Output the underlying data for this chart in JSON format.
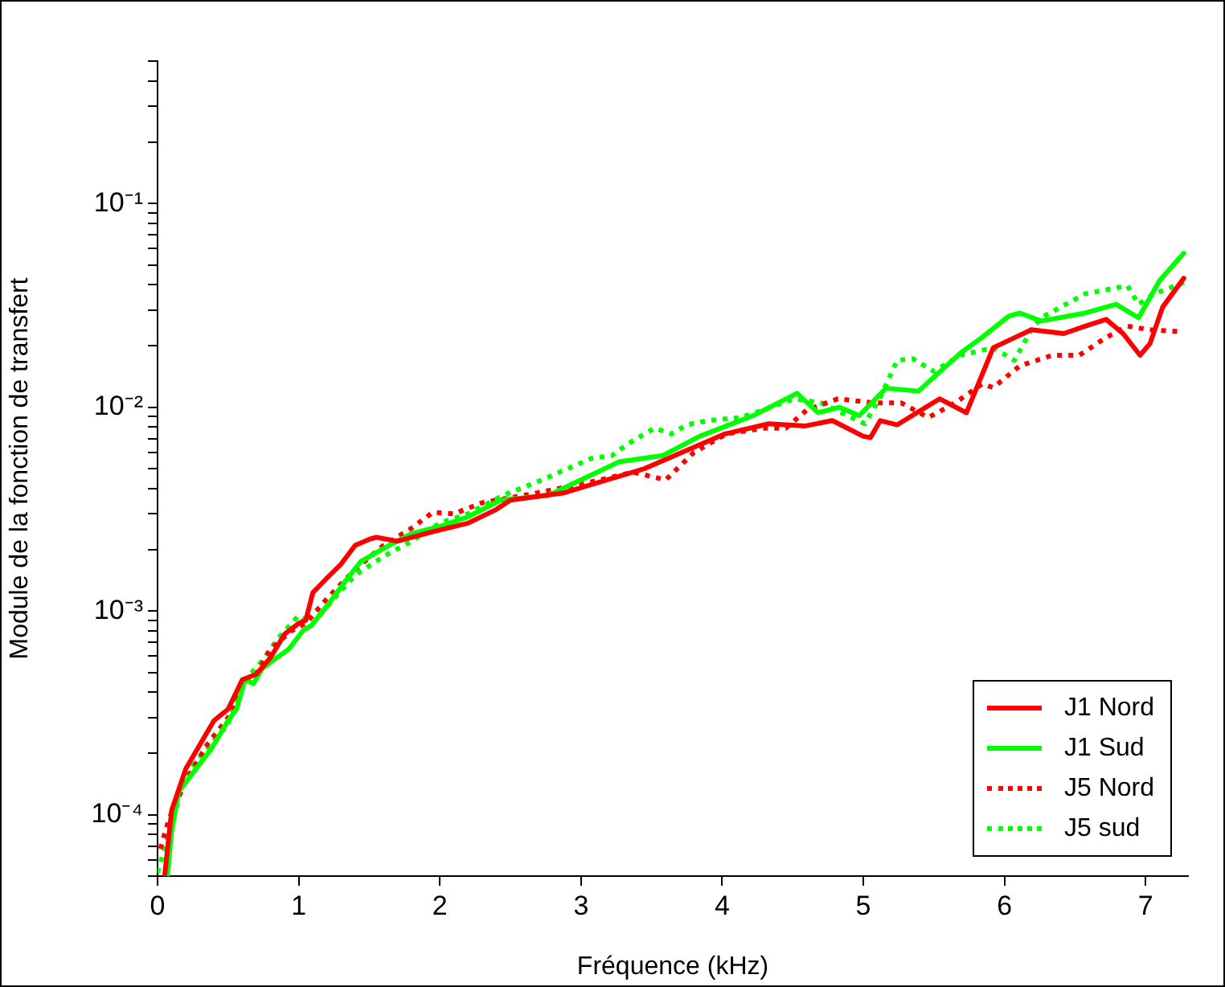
{
  "chart_data": {
    "type": "line",
    "xlabel": "Fréquence (kHz)",
    "ylabel": "Module de la fonction de transfert",
    "log": "y",
    "xlim": [
      0,
      7.3
    ],
    "xticks": [
      0,
      1,
      2,
      3,
      4,
      5,
      6,
      7
    ],
    "ylim": [
      5e-05,
      0.5
    ],
    "yticks": [
      {
        "value": 5e-05,
        "label": null
      },
      {
        "value": 6e-05,
        "label": null
      },
      {
        "value": 7e-05,
        "label": null
      },
      {
        "value": 8e-05,
        "label": null
      },
      {
        "value": 9e-05,
        "label": null
      },
      {
        "value": 0.0001,
        "label": "10⁻⁴"
      },
      {
        "value": 0.0002,
        "label": null
      },
      {
        "value": 0.0003,
        "label": null
      },
      {
        "value": 0.0004,
        "label": null
      },
      {
        "value": 0.0005,
        "label": null
      },
      {
        "value": 0.0006,
        "label": null
      },
      {
        "value": 0.0007,
        "label": null
      },
      {
        "value": 0.0008,
        "label": null
      },
      {
        "value": 0.0009,
        "label": null
      },
      {
        "value": 0.001,
        "label": "10⁻³"
      },
      {
        "value": 0.002,
        "label": null
      },
      {
        "value": 0.003,
        "label": null
      },
      {
        "value": 0.004,
        "label": null
      },
      {
        "value": 0.005,
        "label": null
      },
      {
        "value": 0.006,
        "label": null
      },
      {
        "value": 0.007,
        "label": null
      },
      {
        "value": 0.008,
        "label": null
      },
      {
        "value": 0.009,
        "label": null
      },
      {
        "value": 0.01,
        "label": "10⁻²"
      },
      {
        "value": 0.02,
        "label": null
      },
      {
        "value": 0.03,
        "label": null
      },
      {
        "value": 0.04,
        "label": null
      },
      {
        "value": 0.05,
        "label": null
      },
      {
        "value": 0.06,
        "label": null
      },
      {
        "value": 0.07,
        "label": null
      },
      {
        "value": 0.08,
        "label": null
      },
      {
        "value": 0.09,
        "label": null
      },
      {
        "value": 0.1,
        "label": "10⁻¹"
      },
      {
        "value": 0.2,
        "label": null
      },
      {
        "value": 0.3,
        "label": null
      },
      {
        "value": 0.4,
        "label": null
      },
      {
        "value": 0.5,
        "label": null
      }
    ],
    "grid": false,
    "legend": "bottom right",
    "marker": "none",
    "series": [
      {
        "name": "J1 Nord",
        "color": "#ff0000",
        "line_style": "solid",
        "x": [
          0.05,
          0.1,
          0.2,
          0.4,
          0.5,
          0.6,
          0.7,
          0.8,
          0.9,
          1.0,
          1.05,
          1.1,
          1.2,
          1.3,
          1.4,
          1.5,
          1.55,
          1.7,
          1.9,
          2.0,
          2.2,
          2.4,
          2.5,
          2.88,
          3.45,
          4.02,
          4.33,
          4.59,
          4.78,
          5.0,
          5.05,
          5.12,
          5.24,
          5.54,
          5.73,
          5.92,
          6.19,
          6.42,
          6.57,
          6.72,
          6.84,
          6.96,
          7.03,
          7.12,
          7.27
        ],
        "values": [
          5e-05,
          0.000105,
          0.000168,
          0.00029,
          0.00033,
          0.00046,
          0.00049,
          0.00059,
          0.00077,
          0.00087,
          0.0009,
          0.00123,
          0.00145,
          0.0017,
          0.0021,
          0.00225,
          0.0023,
          0.0022,
          0.0024,
          0.0025,
          0.0027,
          0.00315,
          0.0035,
          0.0038,
          0.005,
          0.0074,
          0.0083,
          0.0081,
          0.0086,
          0.0072,
          0.0071,
          0.0086,
          0.0082,
          0.011,
          0.0094,
          0.0196,
          0.024,
          0.023,
          0.025,
          0.027,
          0.023,
          0.018,
          0.0205,
          0.031,
          0.043
        ]
      },
      {
        "name": "J1 Sud",
        "color": "#00ff00",
        "line_style": "solid",
        "x": [
          0.07,
          0.1,
          0.15,
          0.38,
          0.5,
          0.56,
          0.62,
          0.68,
          0.74,
          0.83,
          0.93,
          1.03,
          1.09,
          1.21,
          1.33,
          1.44,
          1.64,
          1.8,
          2.0,
          2.2,
          2.43,
          2.77,
          3.0,
          3.27,
          3.58,
          3.84,
          4.22,
          4.53,
          4.68,
          4.83,
          4.97,
          5.16,
          5.39,
          5.69,
          5.84,
          6.03,
          6.11,
          6.26,
          6.57,
          6.79,
          6.95,
          7.1,
          7.27
        ],
        "values": [
          5e-05,
          8.3e-05,
          0.00013,
          0.00021,
          0.00029,
          0.00033,
          0.00046,
          0.00044,
          0.00052,
          0.00058,
          0.00065,
          0.0008,
          0.00085,
          0.00108,
          0.0014,
          0.00175,
          0.0021,
          0.0024,
          0.0026,
          0.0029,
          0.0035,
          0.0037,
          0.0044,
          0.0054,
          0.0058,
          0.0072,
          0.0091,
          0.0117,
          0.0094,
          0.01,
          0.0091,
          0.0124,
          0.012,
          0.0185,
          0.022,
          0.028,
          0.029,
          0.0265,
          0.029,
          0.032,
          0.0275,
          0.042,
          0.057
        ]
      },
      {
        "name": "J5 Nord",
        "color": "#ff0000",
        "line_style": "dotted",
        "x": [
          0.02,
          0.08,
          0.2,
          0.35,
          0.5,
          0.6,
          0.7,
          0.8,
          0.95,
          1.05,
          1.2,
          1.4,
          1.6,
          1.8,
          1.95,
          2.1,
          2.3,
          2.69,
          3.07,
          3.37,
          3.6,
          3.8,
          4.03,
          4.3,
          4.45,
          4.6,
          4.82,
          5.08,
          5.27,
          5.46,
          5.65,
          5.84,
          5.92,
          6.11,
          6.34,
          6.53,
          6.72,
          6.87,
          7.03,
          7.25
        ],
        "values": [
          6.8e-05,
          9.5e-05,
          0.000147,
          0.00022,
          0.0003,
          0.00045,
          0.00049,
          0.00065,
          0.0008,
          0.00087,
          0.00115,
          0.0016,
          0.0021,
          0.00255,
          0.00305,
          0.003,
          0.0034,
          0.0038,
          0.0043,
          0.0048,
          0.0044,
          0.006,
          0.0074,
          0.0079,
          0.0079,
          0.0097,
          0.011,
          0.0105,
          0.0105,
          0.0089,
          0.0105,
          0.013,
          0.0125,
          0.016,
          0.018,
          0.018,
          0.022,
          0.025,
          0.024,
          0.0235
        ]
      },
      {
        "name": "J5 sud",
        "color": "#00ff00",
        "line_style": "dotted",
        "x": [
          0.0,
          0.1,
          0.2,
          0.35,
          0.5,
          0.6,
          0.75,
          0.85,
          1.0,
          1.1,
          1.25,
          1.4,
          1.6,
          1.8,
          2.0,
          2.2,
          2.45,
          2.69,
          3.07,
          3.22,
          3.33,
          3.52,
          3.64,
          3.75,
          3.9,
          4.13,
          4.29,
          4.51,
          4.7,
          5.01,
          5.12,
          5.24,
          5.35,
          5.5,
          5.69,
          5.92,
          6.07,
          6.19,
          6.26,
          6.57,
          6.87,
          6.95,
          7.06,
          7.27
        ],
        "values": [
          5.2e-05,
          9e-05,
          0.00016,
          0.00021,
          0.00028,
          0.00044,
          0.00058,
          0.00073,
          0.00095,
          0.00087,
          0.00115,
          0.0015,
          0.00185,
          0.0022,
          0.0027,
          0.003,
          0.0037,
          0.0043,
          0.0056,
          0.0058,
          0.0066,
          0.0079,
          0.0074,
          0.0082,
          0.0086,
          0.0089,
          0.0097,
          0.011,
          0.0105,
          0.0083,
          0.0112,
          0.017,
          0.0173,
          0.015,
          0.018,
          0.0196,
          0.017,
          0.024,
          0.0275,
          0.036,
          0.0395,
          0.032,
          0.036,
          0.041
        ]
      }
    ]
  }
}
